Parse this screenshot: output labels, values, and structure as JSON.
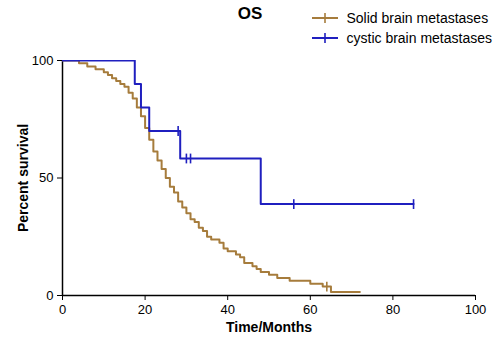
{
  "chart_data": {
    "type": "line",
    "title": "OS",
    "x_label": "Time/Months",
    "y_label": "Percent survival",
    "xlim": [
      0,
      100
    ],
    "xticks": [
      0,
      20,
      40,
      60,
      80,
      100
    ],
    "ylim": [
      0,
      100
    ],
    "yticks": [
      0,
      50,
      100
    ],
    "grid": false,
    "legend": "top-right",
    "line_style": "step",
    "series": [
      {
        "name": "Solid brain metastases",
        "color": "#a67c3c",
        "marker": "tick",
        "x": [
          0,
          4,
          6,
          8,
          10,
          11,
          12,
          13,
          14,
          15,
          16,
          17,
          18,
          19,
          20,
          21,
          22,
          23,
          24,
          25,
          26,
          27,
          28,
          29,
          30,
          31,
          32,
          33,
          34,
          35,
          36,
          38,
          39,
          40,
          42,
          43,
          44,
          46,
          47,
          48,
          50,
          52,
          55,
          60,
          63,
          65,
          72
        ],
        "values": [
          100,
          98.8,
          97.5,
          96.3,
          95,
          93.8,
          92.5,
          91.3,
          90,
          88.8,
          86.3,
          83.8,
          80,
          76.3,
          71.3,
          66.3,
          61.3,
          57.5,
          53.8,
          50,
          46.3,
          43.8,
          40,
          37.5,
          35,
          32.5,
          31.3,
          28.8,
          27.5,
          25,
          23.8,
          22.5,
          20,
          18.8,
          17.5,
          16.3,
          13.8,
          12.5,
          11.3,
          10,
          8.8,
          7.5,
          6.3,
          5,
          3.8,
          1.5,
          1.5
        ],
        "censored_x": [
          64
        ],
        "censored_values": [
          3.8
        ]
      },
      {
        "name": "cystic brain metastases",
        "color": "#1f1fbf",
        "marker": "tick",
        "x": [
          0,
          17.5,
          19,
          21,
          28.5,
          48,
          85
        ],
        "values": [
          100,
          90,
          80,
          70,
          58.3,
          38.9,
          38.9
        ],
        "censored_x": [
          28,
          30,
          31,
          56,
          85
        ],
        "censored_values": [
          70,
          58.3,
          58.3,
          38.9,
          38.9
        ]
      }
    ]
  }
}
